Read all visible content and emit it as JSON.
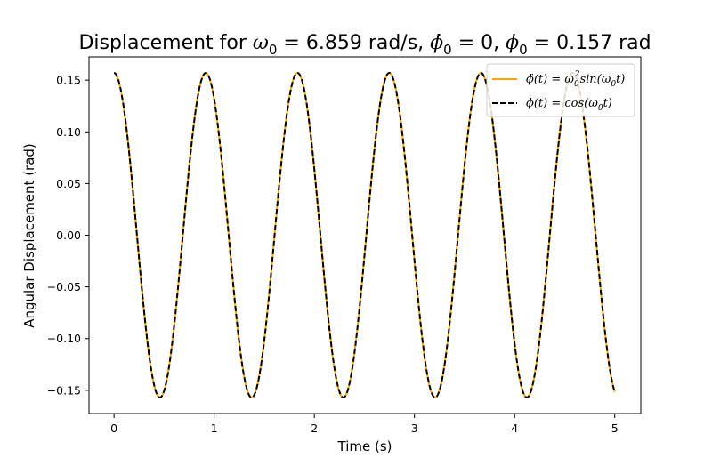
{
  "chart_data": {
    "type": "line",
    "title_parts": {
      "prefix": "Displacement for ",
      "omega_sym": "ω",
      "omega_sub": "0",
      "omega_eq": " =  ",
      "omega_val": "6.859 rad/s, ",
      "phidot_sym": "ϕ̇",
      "phidot_sub": "0",
      "phidot_eq": " = 0, ",
      "phi_sym": "ϕ",
      "phi_sub": "0",
      "phi_eq": " = 0.157 rad"
    },
    "xlabel": "Time (s)",
    "ylabel": "Angular Displacement (rad)",
    "xlim": [
      -0.25,
      5.26
    ],
    "ylim": [
      -0.1725,
      0.1725
    ],
    "x_ticks": [
      0,
      1,
      2,
      3,
      4,
      5
    ],
    "x_tick_labels": [
      "0",
      "1",
      "2",
      "3",
      "4",
      "5"
    ],
    "y_ticks": [
      -0.15,
      -0.1,
      -0.05,
      0.0,
      0.05,
      0.1,
      0.15
    ],
    "y_tick_labels": [
      "−0.15",
      "−0.10",
      "−0.05",
      "0.00",
      "0.05",
      "0.10",
      "0.15"
    ],
    "grid": false,
    "legend_position": "top-right",
    "omega0": 6.859,
    "phi0": 0.157,
    "t_range": [
      0,
      5
    ],
    "series": [
      {
        "name": "ϕ̈(t) = ω0²sin(ω0t)",
        "color": "#ffa500",
        "style": "solid",
        "amplitude": 0.157,
        "omega": 6.859
      },
      {
        "name": "ϕ(t) =  cos(ω0t)",
        "color": "#000000",
        "style": "dashed",
        "amplitude": 0.157,
        "omega": 6.859
      }
    ],
    "legend_labels": {
      "s1_a": "ϕ̈(t) = ω",
      "s1_sub": "0",
      "s1_sup": "2",
      "s1_b": "sin(ω",
      "s1_sub2": "0",
      "s1_c": "t)",
      "s2_a": "ϕ(t) =  cos(ω",
      "s2_sub": "0",
      "s2_b": "t)"
    }
  }
}
